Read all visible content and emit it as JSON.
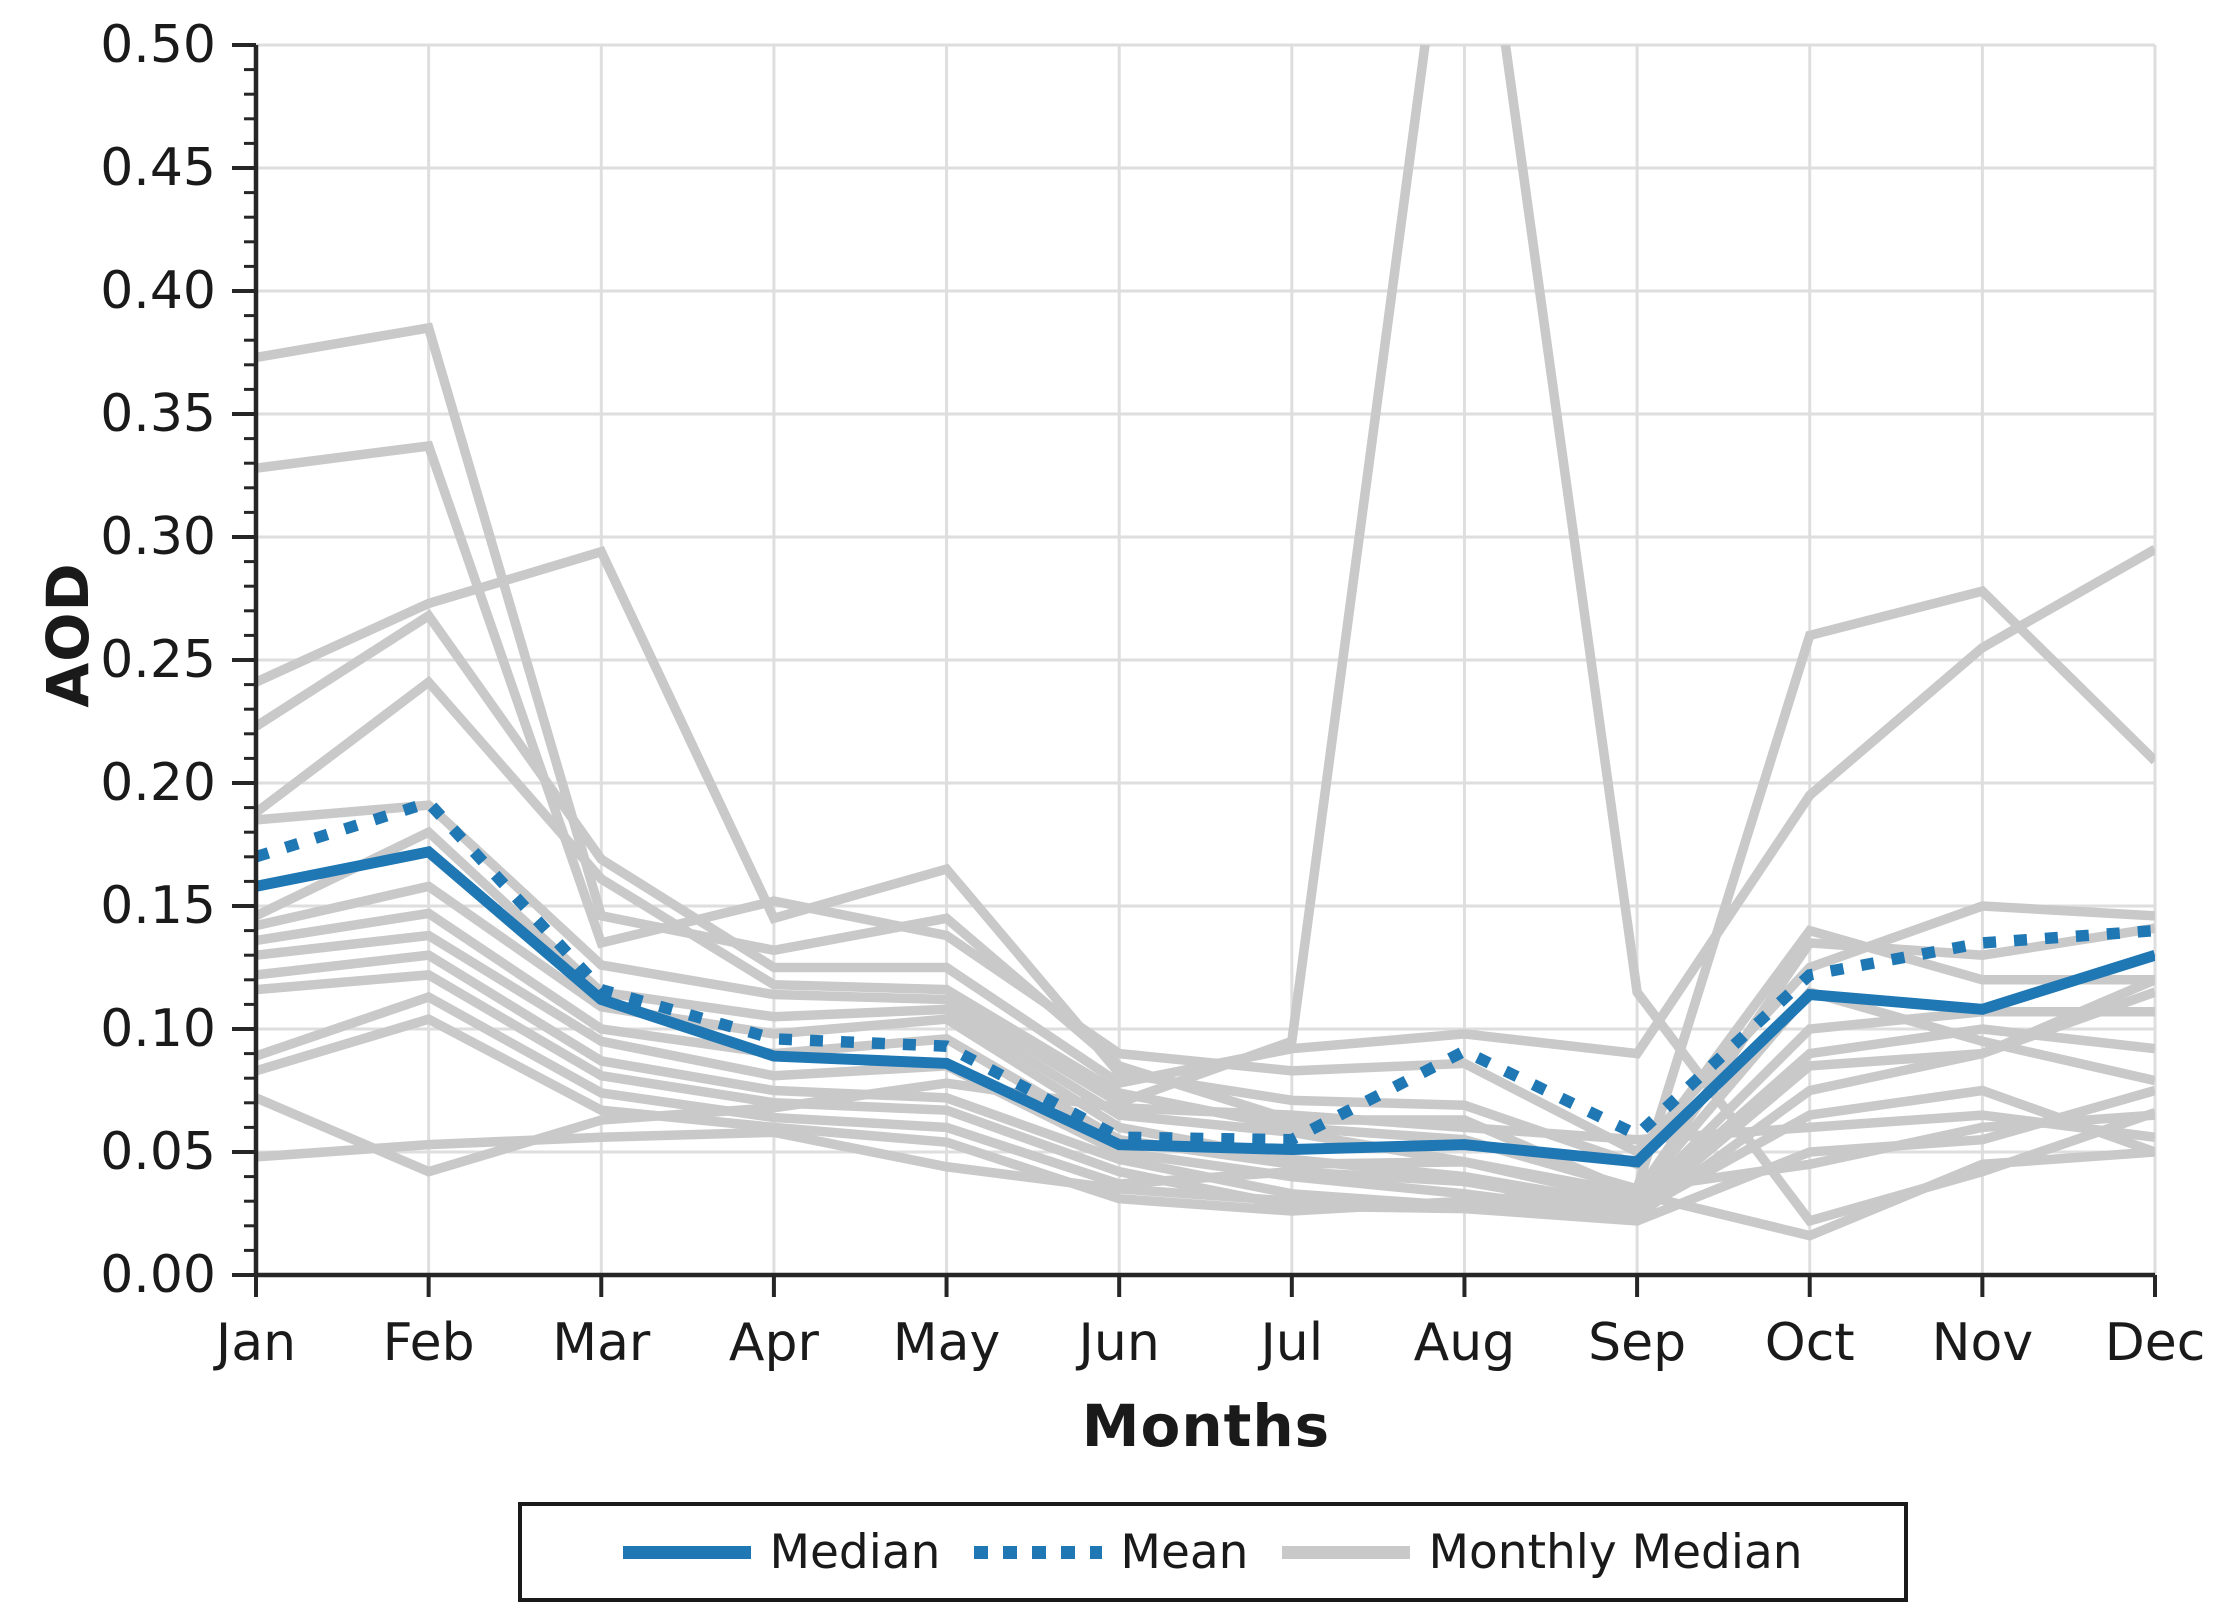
{
  "colors": {
    "median_blue": "#1f77b4",
    "gray_line": "#c9c9c9",
    "grid": "#dedede",
    "axis": "#262626",
    "text": "#1a1a1a"
  },
  "chart_data": {
    "type": "line",
    "title": "",
    "xlabel": "Months",
    "ylabel": "AOD",
    "ylim": [
      0.0,
      0.5
    ],
    "ytick_step": 0.05,
    "yticklabels": [
      "0.00",
      "0.05",
      "0.10",
      "0.15",
      "0.20",
      "0.25",
      "0.30",
      "0.35",
      "0.40",
      "0.45",
      "0.50"
    ],
    "grid": "on",
    "legend_position": "below",
    "categories": [
      "Jan",
      "Feb",
      "Mar",
      "Apr",
      "May",
      "Jun",
      "Jul",
      "Aug",
      "Sep",
      "Oct",
      "Nov",
      "Dec"
    ],
    "legend": [
      {
        "label": "Median",
        "style": "solid",
        "color": "#1f77b4"
      },
      {
        "label": "Mean",
        "style": "dotted",
        "color": "#1f77b4"
      },
      {
        "label": "Monthly Median",
        "style": "solid",
        "color": "#c9c9c9"
      }
    ],
    "series": [
      {
        "name": "Median",
        "role": "median",
        "values": [
          0.158,
          0.172,
          0.112,
          0.089,
          0.086,
          0.053,
          0.051,
          0.053,
          0.046,
          0.114,
          0.108,
          0.13
        ]
      },
      {
        "name": "Mean",
        "role": "mean",
        "values": [
          0.17,
          0.192,
          0.116,
          0.096,
          0.093,
          0.056,
          0.055,
          0.091,
          0.057,
          0.122,
          0.135,
          0.14
        ]
      }
    ],
    "monthly_median_series": [
      [
        0.373,
        0.385,
        0.146,
        0.132,
        0.145,
        0.085,
        0.063,
        0.063,
        0.033,
        0.135,
        0.13,
        0.141
      ],
      [
        0.328,
        0.337,
        0.135,
        0.152,
        0.138,
        0.09,
        0.083,
        0.086,
        0.05,
        0.125,
        0.15,
        0.146
      ],
      [
        0.241,
        0.273,
        0.294,
        0.145,
        0.165,
        0.082,
        0.071,
        0.069,
        0.045,
        0.14,
        0.12,
        0.12
      ],
      [
        0.223,
        0.268,
        0.169,
        0.125,
        0.125,
        0.078,
        0.092,
        0.098,
        0.09,
        0.195,
        0.255,
        0.295
      ],
      [
        0.188,
        0.241,
        0.161,
        0.118,
        0.116,
        0.074,
        0.06,
        0.055,
        0.035,
        0.26,
        0.278,
        0.209
      ],
      [
        0.185,
        0.191,
        0.126,
        0.114,
        0.112,
        0.07,
        0.095,
        0.62,
        0.115,
        0.022,
        0.042,
        0.066
      ],
      [
        0.146,
        0.18,
        0.115,
        0.105,
        0.108,
        0.065,
        0.058,
        0.046,
        0.03,
        0.1,
        0.107,
        0.107
      ],
      [
        0.142,
        0.158,
        0.109,
        0.098,
        0.104,
        0.06,
        0.047,
        0.04,
        0.028,
        0.09,
        0.1,
        0.092
      ],
      [
        0.136,
        0.147,
        0.1,
        0.09,
        0.096,
        0.055,
        0.045,
        0.046,
        0.033,
        0.115,
        0.095,
        0.079
      ],
      [
        0.13,
        0.138,
        0.095,
        0.081,
        0.085,
        0.05,
        0.04,
        0.033,
        0.024,
        0.075,
        0.09,
        0.12
      ],
      [
        0.122,
        0.13,
        0.087,
        0.075,
        0.072,
        0.047,
        0.033,
        0.028,
        0.026,
        0.065,
        0.075,
        0.05
      ],
      [
        0.116,
        0.122,
        0.081,
        0.07,
        0.067,
        0.042,
        0.028,
        0.027,
        0.022,
        0.05,
        0.055,
        0.075
      ],
      [
        0.089,
        0.113,
        0.074,
        0.064,
        0.06,
        0.037,
        0.042,
        0.038,
        0.026,
        0.085,
        0.09,
        0.115
      ],
      [
        0.083,
        0.104,
        0.067,
        0.06,
        0.054,
        0.031,
        0.026,
        0.03,
        0.035,
        0.045,
        0.06,
        0.065
      ],
      [
        0.072,
        0.042,
        0.063,
        0.068,
        0.078,
        0.068,
        0.065,
        0.06,
        0.055,
        0.06,
        0.065,
        0.056
      ],
      [
        0.048,
        0.053,
        0.056,
        0.058,
        0.044,
        0.035,
        0.03,
        0.028,
        0.033,
        0.016,
        0.045,
        0.05
      ]
    ]
  }
}
